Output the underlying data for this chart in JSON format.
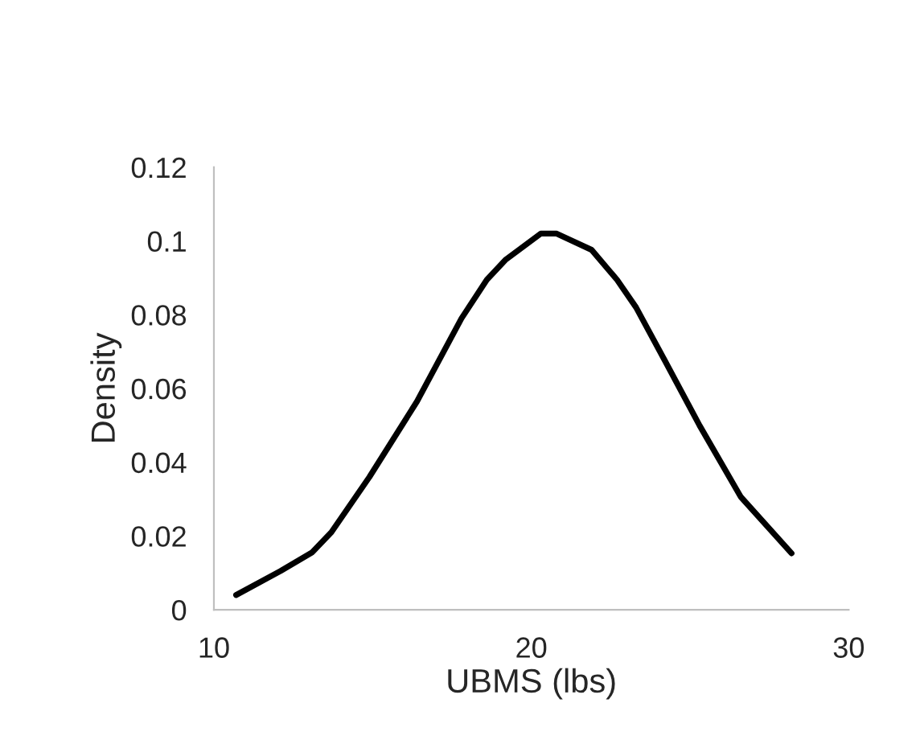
{
  "chart_data": {
    "type": "line",
    "xlabel": "UBMS (lbs)",
    "ylabel": "Density",
    "xlim": [
      10,
      30
    ],
    "xticks": [
      10,
      20,
      30
    ],
    "ylim": [
      0,
      0.12
    ],
    "yticks": [
      0,
      0.02,
      0.04,
      0.06,
      0.08,
      0.1,
      0.12
    ],
    "marker": "none",
    "line_style": "solid",
    "series": [
      {
        "color": "#000000",
        "x": [
          10.7,
          12.1,
          13.1,
          13.7,
          14.9,
          16.4,
          17.8,
          18.6,
          19.2,
          20.3,
          20.8,
          21.9,
          22.7,
          23.3,
          24.2,
          25.3,
          26.6,
          28.2
        ],
        "values": [
          0.004,
          0.0105,
          0.0156,
          0.021,
          0.036,
          0.0565,
          0.079,
          0.0895,
          0.095,
          0.102,
          0.102,
          0.0976,
          0.0895,
          0.082,
          0.0677,
          0.05,
          0.0306,
          0.0153
        ]
      }
    ]
  }
}
